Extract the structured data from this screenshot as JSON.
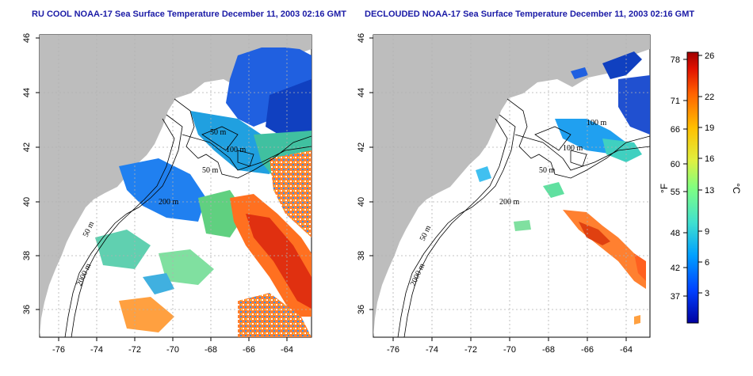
{
  "titles": {
    "left": "RU COOL NOAA-17 Sea Surface Temperature December 11, 2003 02:16 GMT",
    "right": "DECLOUDED NOAA-17 Sea Surface Temperature December 11, 2003 02:16 GMT"
  },
  "axes": {
    "x_ticks": [
      "-76",
      "-74",
      "-72",
      "-70",
      "-68",
      "-66",
      "-64"
    ],
    "y_ticks": [
      "36",
      "38",
      "40",
      "42",
      "44",
      "46"
    ]
  },
  "contour_labels": {
    "left": [
      "50 m",
      "100 m",
      "50 m",
      "200 m",
      "50 m",
      "2000 m"
    ],
    "right": [
      "100 m",
      "100 m",
      "50 m",
      "200 m",
      "50 m",
      "2000 m"
    ]
  },
  "colorbar": {
    "fahrenheit_unit": "°F",
    "celsius_unit": "°C",
    "fahrenheit_ticks": [
      "78",
      "71",
      "66",
      "60",
      "55",
      "48",
      "42",
      "37"
    ],
    "celsius_ticks": [
      "26",
      "22",
      "19",
      "16",
      "13",
      "9",
      "6",
      "3"
    ],
    "colors": [
      "#0000a0",
      "#0040ff",
      "#00a0ff",
      "#40e0d0",
      "#80ff80",
      "#e0f040",
      "#ffc000",
      "#ff6000",
      "#e01000",
      "#a00000"
    ]
  },
  "colors": {
    "land": "#bdbdbd",
    "title": "#1a1aa6"
  }
}
